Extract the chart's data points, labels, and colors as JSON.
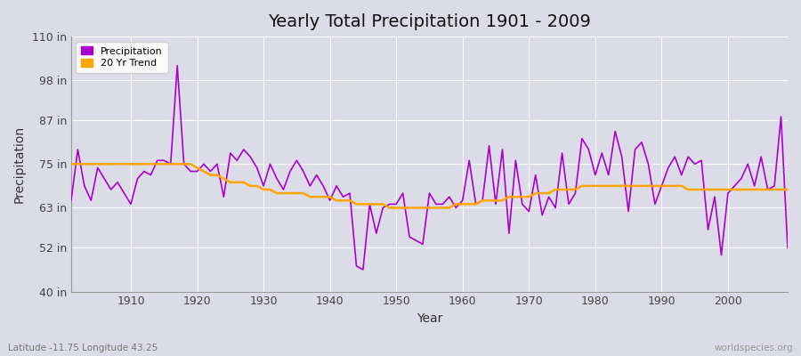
{
  "title": "Yearly Total Precipitation 1901 - 2009",
  "xlabel": "Year",
  "ylabel": "Precipitation",
  "subtitle": "Latitude -11.75 Longitude 43.25",
  "watermark": "worldspecies.org",
  "ylim": [
    40,
    110
  ],
  "yticks": [
    40,
    52,
    63,
    75,
    87,
    98,
    110
  ],
  "ytick_labels": [
    "40 in",
    "52 in",
    "63 in",
    "75 in",
    "87 in",
    "98 in",
    "110 in"
  ],
  "xlim": [
    1901,
    2009
  ],
  "xticks": [
    1910,
    1920,
    1930,
    1940,
    1950,
    1960,
    1970,
    1980,
    1990,
    2000
  ],
  "precip_color": "#AA00CC",
  "trend_color": "#FFA500",
  "bg_color": "#DCDCE8",
  "plot_bg_color": "#DCDCE8",
  "grid_color": "#FFFFFF",
  "legend_precip": "Precipitation",
  "legend_trend": "20 Yr Trend",
  "years": [
    1901,
    1902,
    1903,
    1904,
    1905,
    1906,
    1907,
    1908,
    1909,
    1910,
    1911,
    1912,
    1913,
    1914,
    1915,
    1916,
    1917,
    1918,
    1919,
    1920,
    1921,
    1922,
    1923,
    1924,
    1925,
    1926,
    1927,
    1928,
    1929,
    1930,
    1931,
    1932,
    1933,
    1934,
    1935,
    1936,
    1937,
    1938,
    1939,
    1940,
    1941,
    1942,
    1943,
    1944,
    1945,
    1946,
    1947,
    1948,
    1949,
    1950,
    1951,
    1952,
    1953,
    1954,
    1955,
    1956,
    1957,
    1958,
    1959,
    1960,
    1961,
    1962,
    1963,
    1964,
    1965,
    1966,
    1967,
    1968,
    1969,
    1970,
    1971,
    1972,
    1973,
    1974,
    1975,
    1976,
    1977,
    1978,
    1979,
    1980,
    1981,
    1982,
    1983,
    1984,
    1985,
    1986,
    1987,
    1988,
    1989,
    1990,
    1991,
    1992,
    1993,
    1994,
    1995,
    1996,
    1997,
    1998,
    1999,
    2000,
    2001,
    2002,
    2003,
    2004,
    2005,
    2006,
    2007,
    2008,
    2009
  ],
  "precipitation": [
    65,
    79,
    69,
    65,
    74,
    71,
    68,
    70,
    67,
    64,
    71,
    73,
    72,
    76,
    76,
    75,
    102,
    75,
    73,
    73,
    75,
    73,
    75,
    66,
    78,
    76,
    79,
    77,
    74,
    69,
    75,
    71,
    68,
    73,
    76,
    73,
    69,
    72,
    69,
    65,
    69,
    66,
    67,
    47,
    46,
    64,
    56,
    63,
    64,
    64,
    67,
    55,
    54,
    53,
    67,
    64,
    64,
    66,
    63,
    65,
    76,
    64,
    65,
    80,
    64,
    79,
    56,
    76,
    64,
    62,
    72,
    61,
    66,
    63,
    78,
    64,
    67,
    82,
    79,
    72,
    78,
    72,
    84,
    77,
    62,
    79,
    81,
    75,
    64,
    69,
    74,
    77,
    72,
    77,
    75,
    76,
    57,
    66,
    50,
    67,
    69,
    71,
    75,
    69,
    77,
    68,
    69,
    88,
    52
  ],
  "trend": [
    75,
    75,
    75,
    75,
    75,
    75,
    75,
    75,
    75,
    75,
    75,
    75,
    75,
    75,
    75,
    75,
    75,
    75,
    75,
    74,
    73,
    72,
    72,
    71,
    70,
    70,
    70,
    69,
    69,
    68,
    68,
    67,
    67,
    67,
    67,
    67,
    66,
    66,
    66,
    66,
    65,
    65,
    65,
    64,
    64,
    64,
    64,
    64,
    63,
    63,
    63,
    63,
    63,
    63,
    63,
    63,
    63,
    63,
    64,
    64,
    64,
    64,
    65,
    65,
    65,
    65,
    66,
    66,
    66,
    66,
    67,
    67,
    67,
    68,
    68,
    68,
    68,
    69,
    69,
    69,
    69,
    69,
    69,
    69,
    69,
    69,
    69,
    69,
    69,
    69,
    69,
    69,
    69,
    68,
    68,
    68,
    68,
    68,
    68,
    68,
    68,
    68,
    68,
    68,
    68,
    68,
    68,
    68,
    68
  ]
}
